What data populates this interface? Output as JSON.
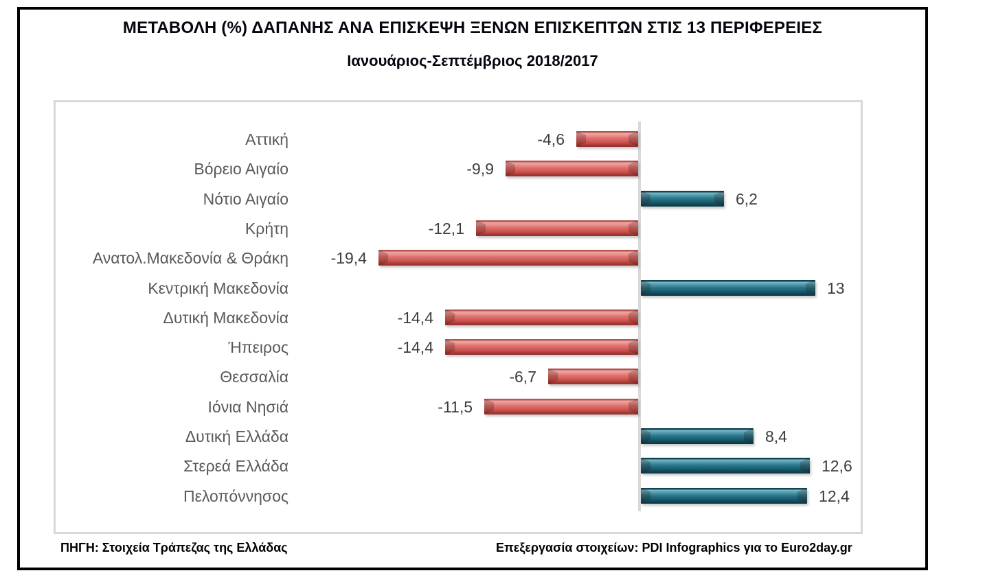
{
  "title": "ΜΕΤΑΒΟΛΗ (%) ΔΑΠΑΝΗΣ ΑΝΑ ΕΠΙΣΚΕΨΗ ΞΕΝΩΝ ΕΠΙΣΚΕΠΤΩΝ ΣΤΙΣ 13 ΠΕΡΙΦΕΡΕΙΕΣ",
  "subtitle": "Ιανουάριος-Σεπτέμβριος 2018/2017",
  "footer": {
    "source": "ΠΗΓΗ: Στοιχεία Τράπεζας της Ελλάδας",
    "credit": "Επεξεργασία στοιχείων: PDI Infographics για το Euro2day.gr"
  },
  "chart_data": {
    "type": "bar",
    "orientation": "horizontal",
    "title": "ΜΕΤΑΒΟΛΗ (%) ΔΑΠΑΝΗΣ ΑΝΑ ΕΠΙΣΚΕΨΗ ΞΕΝΩΝ ΕΠΙΣΚΕΠΤΩΝ ΣΤΙΣ 13 ΠΕΡΙΦΕΡΕΙΕΣ",
    "subtitle": "Ιανουάριος-Σεπτέμβριος 2018/2017",
    "categories": [
      "Αττική",
      "Βόρειο Αιγαίο",
      "Νότιο Αιγαίο",
      "Κρήτη",
      "Ανατολ.Μακεδονία & Θράκη",
      "Κεντρική Μακεδονία",
      "Δυτική Μακεδονία",
      "Ήπειρος",
      "Θεσσαλία",
      "Ιόνια Νησιά",
      "Δυτική Ελλάδα",
      "Στερεά Ελλάδα",
      "Πελοπόννησος"
    ],
    "values": [
      -4.6,
      -9.9,
      6.2,
      -12.1,
      -19.4,
      13,
      -14.4,
      -14.4,
      -6.7,
      -11.5,
      8.4,
      12.6,
      12.4
    ],
    "value_labels": [
      "-4,6",
      "-9,9",
      "6,2",
      "-12,1",
      "-19,4",
      "13",
      "-14,4",
      "-14,4",
      "-6,7",
      "-11,5",
      "8,4",
      "12,6",
      "12,4"
    ],
    "unit": "%",
    "axis_position": 0,
    "xlim": [
      -25,
      16
    ],
    "grid": false,
    "legend": false,
    "colors": {
      "positive_bar": "#1d6477",
      "negative_bar": "#d76561",
      "axis_line": "#d9d9d9",
      "category_label": "#595959",
      "value_label": "#3d3d3d",
      "title_text": "#05050f",
      "chart_border": "#d8d8d8",
      "frame_border": "#000000"
    }
  }
}
